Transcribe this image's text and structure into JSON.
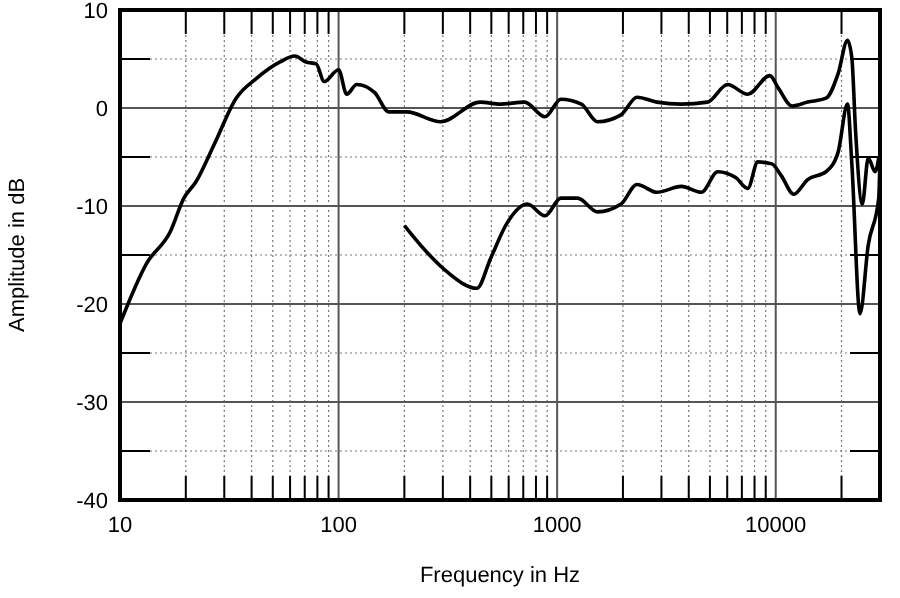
{
  "chart_data": {
    "type": "line",
    "xlabel": "Frequency in Hz",
    "ylabel": "Amplitude in dB",
    "log": "x",
    "xlim": [
      10,
      30000
    ],
    "ylim": [
      -40,
      10
    ],
    "xticks": [
      10,
      100,
      1000,
      10000
    ],
    "yticks": [
      -40,
      -30,
      -20,
      -10,
      0,
      10
    ],
    "grid": true,
    "marker": "none",
    "line_style": "solid",
    "series": [
      {
        "color": "#000000",
        "x": [
          10,
          13.2,
          17,
          19.6,
          22.3,
          27,
          34,
          42,
          54,
          63,
          71,
          79,
          86,
          100,
          109,
          121,
          146,
          170,
          205,
          293,
          445,
          550,
          710,
          880,
          1040,
          1290,
          1530,
          1960,
          2320,
          2860,
          3700,
          4870,
          6020,
          7450,
          9400,
          10300,
          11900,
          14000,
          17000,
          19300,
          21300,
          22300,
          23200,
          24900,
          26500,
          28500,
          29600
        ],
        "values": [
          -22,
          -15.9,
          -12.6,
          -9.2,
          -7.5,
          -3.7,
          1,
          3,
          4.7,
          5.3,
          4.7,
          4.5,
          2.7,
          3.9,
          1.4,
          2.4,
          1.6,
          -0.4,
          -0.4,
          -1.4,
          0.6,
          0.4,
          0.6,
          -0.9,
          0.9,
          0.4,
          -1.4,
          -0.7,
          1.1,
          0.6,
          0.4,
          0.6,
          2.4,
          1.4,
          3.3,
          2,
          0.2,
          0.6,
          1,
          3.5,
          6.9,
          5.1,
          -2.4,
          -9.8,
          -5.1,
          -6.5,
          -5.1
        ]
      },
      {
        "color": "#000000",
        "x": [
          200,
          253,
          313,
          429,
          497,
          588,
          730,
          880,
          1040,
          1240,
          1530,
          1960,
          2320,
          2860,
          3700,
          4570,
          5430,
          6560,
          7450,
          8280,
          9600,
          10600,
          12100,
          14000,
          17000,
          19300,
          21300,
          22300,
          24300,
          26500,
          29600,
          30000
        ],
        "values": [
          -12,
          -14.7,
          -16.7,
          -18.4,
          -15.3,
          -11.8,
          -9.8,
          -11,
          -9.2,
          -9.2,
          -10.6,
          -9.8,
          -7.8,
          -8.6,
          -8,
          -8.6,
          -6.5,
          -7.1,
          -8.2,
          -5.5,
          -5.7,
          -6.9,
          -8.8,
          -7.3,
          -6.5,
          -4.5,
          0.4,
          -5.7,
          -21,
          -14,
          -9.2,
          -5
        ]
      }
    ]
  }
}
